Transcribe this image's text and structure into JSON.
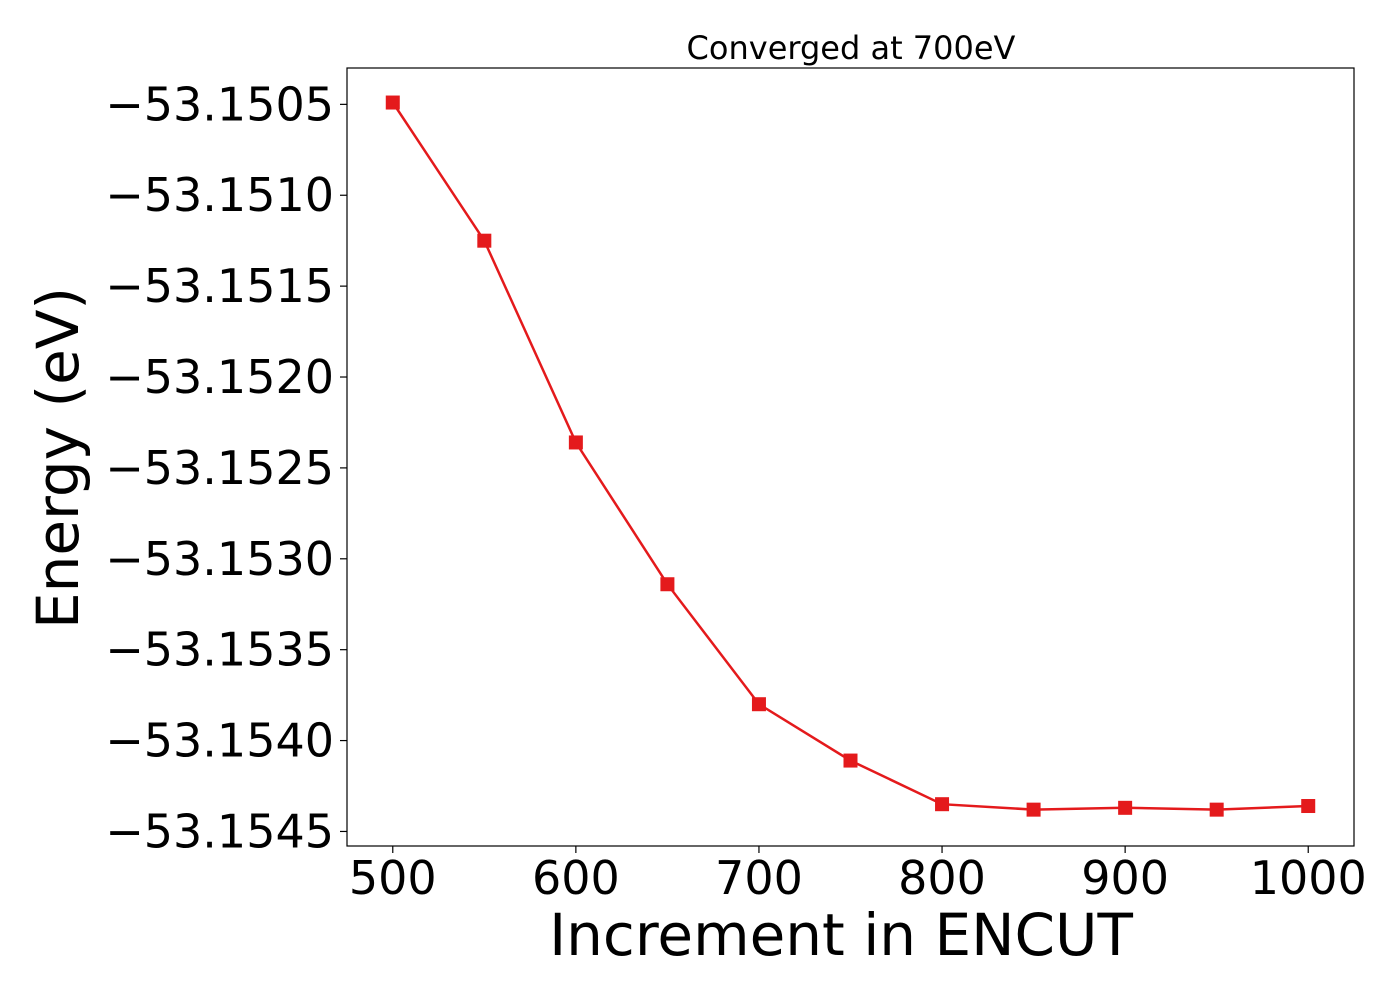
{
  "chart_data": {
    "type": "line",
    "title": "Converged at 700eV",
    "xlabel": "Increment in ENCUT",
    "ylabel": "Energy (eV)",
    "x": [
      500,
      550,
      600,
      650,
      700,
      750,
      800,
      850,
      900,
      950,
      1000
    ],
    "series": [
      {
        "values": [
          -53.15049,
          -53.15125,
          -53.15236,
          -53.15314,
          -53.1538,
          -53.15411,
          -53.15435,
          -53.15438,
          -53.15437,
          -53.15438,
          -53.15436
        ],
        "color": "#e41a1c",
        "marker": "square"
      }
    ],
    "xticks": [
      500,
      600,
      700,
      800,
      900,
      1000
    ],
    "xtick_labels": [
      "500",
      "600",
      "700",
      "800",
      "900",
      "1000"
    ],
    "yticks": [
      -53.1505,
      -53.151,
      -53.1515,
      -53.152,
      -53.1525,
      -53.153,
      -53.1535,
      -53.154,
      -53.1545
    ],
    "ytick_labels": [
      "−53.1505",
      "−53.1510",
      "−53.1515",
      "−53.1520",
      "−53.1525",
      "−53.1530",
      "−53.1535",
      "−53.1540",
      "−53.1545"
    ],
    "xlim": [
      475,
      1025
    ],
    "ylim": [
      -53.15458,
      -53.1503
    ],
    "grid": false,
    "legend": false
  }
}
